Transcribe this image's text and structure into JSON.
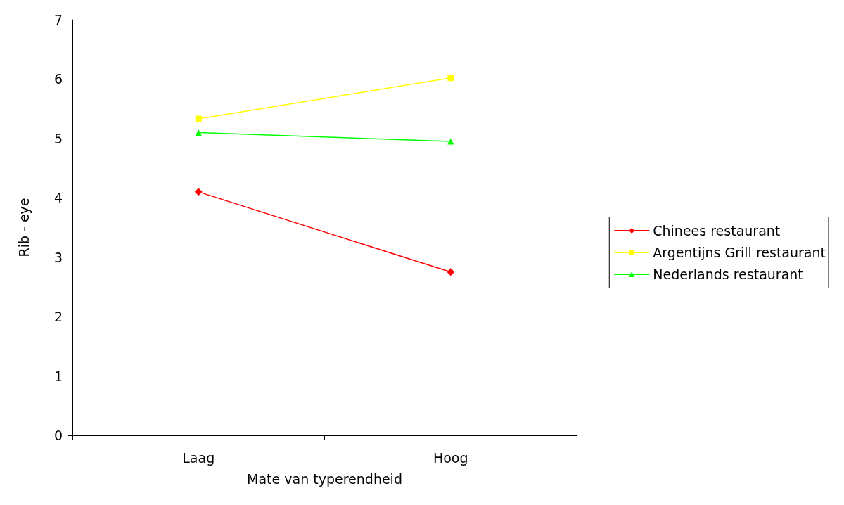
{
  "chart_data": {
    "type": "line",
    "xlabel": "Mate van typerendheid",
    "ylabel": "Rib - eye",
    "categories": [
      "Laag",
      "Hoog"
    ],
    "series": [
      {
        "name": "Chinees restaurant",
        "color": "#ff0000",
        "marker": "diamond",
        "values": [
          4.1,
          2.75
        ]
      },
      {
        "name": "Argentijns Grill restaurant",
        "color": "#ffff00",
        "marker": "square",
        "values": [
          5.33,
          6.02
        ]
      },
      {
        "name": "Nederlands restaurant",
        "color": "#00ff00",
        "marker": "triangle",
        "values": [
          5.1,
          4.95
        ]
      }
    ],
    "ylim": [
      0,
      7
    ],
    "yticks": [
      0,
      1,
      2,
      3,
      4,
      5,
      6,
      7
    ],
    "grid": "y",
    "legend": "right"
  }
}
